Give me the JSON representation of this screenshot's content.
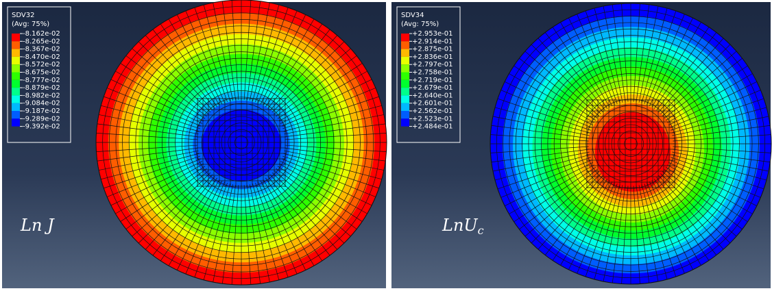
{
  "panels": [
    {
      "legend_title": "SDV32",
      "legend_subtitle": "(Avg: 75%)",
      "legend_labels": [
        "-8.162e-02",
        "-8.265e-02",
        "-8.367e-02",
        "-8.470e-02",
        "-8.572e-02",
        "-8.675e-02",
        "-8.777e-02",
        "-8.879e-02",
        "-8.982e-02",
        "-9.084e-02",
        "-9.187e-02",
        "-9.289e-02",
        "-9.392e-02"
      ],
      "label": {
        "main": "Ln J"
      }
    },
    {
      "legend_title": "SDV34",
      "legend_subtitle": "(Avg: 75%)",
      "legend_labels": [
        "+2.953e-01",
        "+2.914e-01",
        "+2.875e-01",
        "+2.836e-01",
        "+2.797e-01",
        "+2.758e-01",
        "+2.719e-01",
        "+2.679e-01",
        "+2.640e-01",
        "+2.601e-01",
        "+2.562e-01",
        "+2.523e-01",
        "+2.484e-01"
      ],
      "label": {
        "main": "LnU",
        "sub": "c"
      }
    }
  ]
}
